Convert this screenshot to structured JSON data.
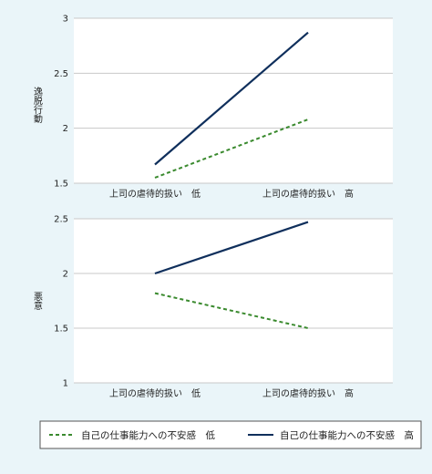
{
  "colors": {
    "background": "#eaf5f9",
    "plot_background": "#ffffff",
    "gridline": "#c8c8c8",
    "series_low": "#3a8a2e",
    "series_high": "#0f2f5c"
  },
  "legend": {
    "position": "bottom",
    "items": [
      {
        "label": "自己の仕事能力への不安感　低",
        "style": "dashed"
      },
      {
        "label": "自己の仕事能力への不安感　高",
        "style": "solid"
      }
    ]
  },
  "chart_data": [
    {
      "type": "line",
      "title": "",
      "ylabel": "逸脱行動",
      "xlabel": "",
      "categories": [
        "上司の虐待的扱い　低",
        "上司の虐待的扱い　高"
      ],
      "ylim": [
        1.5,
        3
      ],
      "yticks": [
        "1.5",
        "2",
        "2.5",
        "3"
      ],
      "grid": true,
      "series": [
        {
          "name": "自己の仕事能力への不安感　低",
          "values": [
            1.55,
            2.08
          ]
        },
        {
          "name": "自己の仕事能力への不安感　高",
          "values": [
            1.67,
            2.87
          ]
        }
      ]
    },
    {
      "type": "line",
      "title": "",
      "ylabel": "悪意",
      "xlabel": "",
      "categories": [
        "上司の虐待的扱い　低",
        "上司の虐待的扱い　高"
      ],
      "ylim": [
        1,
        2.5
      ],
      "yticks": [
        "1",
        "1.5",
        "2",
        "2.5"
      ],
      "grid": true,
      "series": [
        {
          "name": "自己の仕事能力への不安感　低",
          "values": [
            1.82,
            1.5
          ]
        },
        {
          "name": "自己の仕事能力への不安感　高",
          "values": [
            2.0,
            2.47
          ]
        }
      ]
    }
  ]
}
